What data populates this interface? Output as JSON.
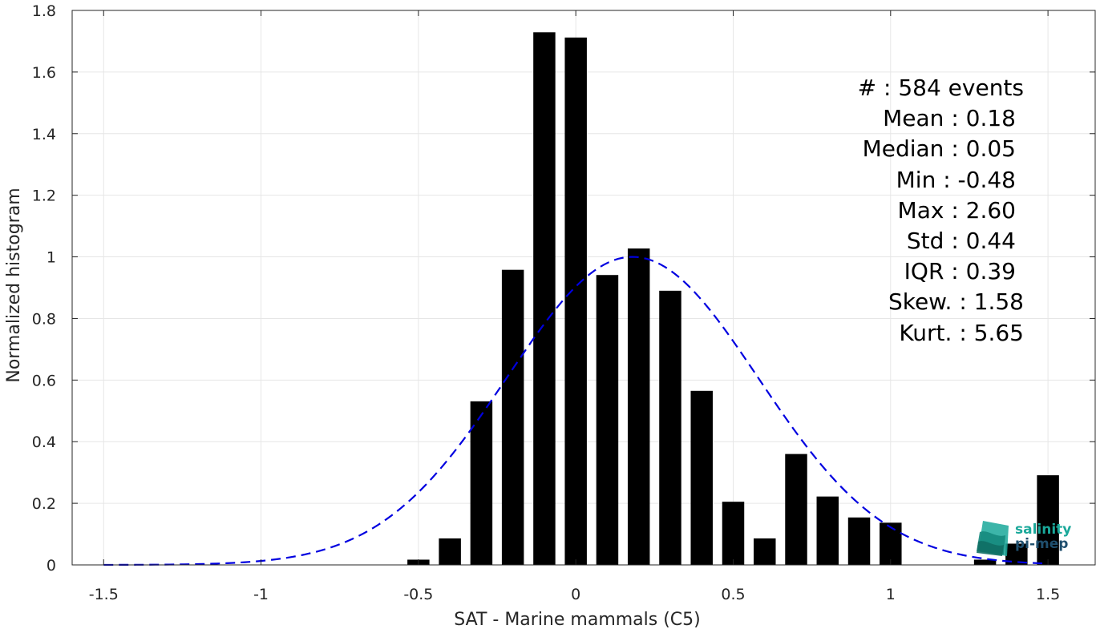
{
  "chart_data": {
    "type": "bar",
    "xlabel": "SAT - Marine mammals (C5)",
    "ylabel": "Normalized histogram",
    "xlim": [
      -1.6,
      1.65
    ],
    "ylim": [
      0,
      1.8
    ],
    "xticks": [
      -1.5,
      -1,
      -0.5,
      0,
      0.5,
      1,
      1.5
    ],
    "xtick_labels": [
      "-1.5",
      "-1",
      "-0.5",
      "0",
      "0.5",
      "1",
      "1.5"
    ],
    "yticks": [
      0,
      0.2,
      0.4,
      0.6,
      0.8,
      1,
      1.2,
      1.4,
      1.6,
      1.8
    ],
    "ytick_labels": [
      "0",
      "0.2",
      "0.4",
      "0.6",
      "0.8",
      "1",
      "1.2",
      "1.4",
      "1.6",
      "1.8"
    ],
    "grid": true,
    "bar_color": "#000000",
    "bar_width": 0.07,
    "bars": [
      {
        "x": -0.5,
        "y": 0.017
      },
      {
        "x": -0.4,
        "y": 0.086
      },
      {
        "x": -0.3,
        "y": 0.531
      },
      {
        "x": -0.2,
        "y": 0.958
      },
      {
        "x": -0.1,
        "y": 1.729
      },
      {
        "x": 0.0,
        "y": 1.712
      },
      {
        "x": 0.1,
        "y": 0.941
      },
      {
        "x": 0.2,
        "y": 1.027
      },
      {
        "x": 0.3,
        "y": 0.89
      },
      {
        "x": 0.4,
        "y": 0.565
      },
      {
        "x": 0.5,
        "y": 0.205
      },
      {
        "x": 0.6,
        "y": 0.086
      },
      {
        "x": 0.7,
        "y": 0.36
      },
      {
        "x": 0.8,
        "y": 0.222
      },
      {
        "x": 0.9,
        "y": 0.154
      },
      {
        "x": 1.0,
        "y": 0.137
      },
      {
        "x": 1.3,
        "y": 0.017
      },
      {
        "x": 1.4,
        "y": 0.069
      },
      {
        "x": 1.5,
        "y": 0.291
      }
    ],
    "fit_curve": {
      "type": "gaussian",
      "style": "dashed",
      "color": "#0000e0",
      "mean": 0.18,
      "std": 0.4,
      "peak": 1.0,
      "x_range": [
        -1.5,
        1.5
      ]
    },
    "stats": [
      "#  : 584 events",
      "Mean : 0.18",
      "Median : 0.05",
      "Min : -0.48",
      "Max : 2.60",
      "Std : 0.44",
      "IQR : 0.39",
      "Skew. : 1.58",
      "Kurt. : 5.65"
    ]
  },
  "logo": {
    "line1": "salinity",
    "line2": "pi-mep",
    "color": "#1aa89a"
  }
}
